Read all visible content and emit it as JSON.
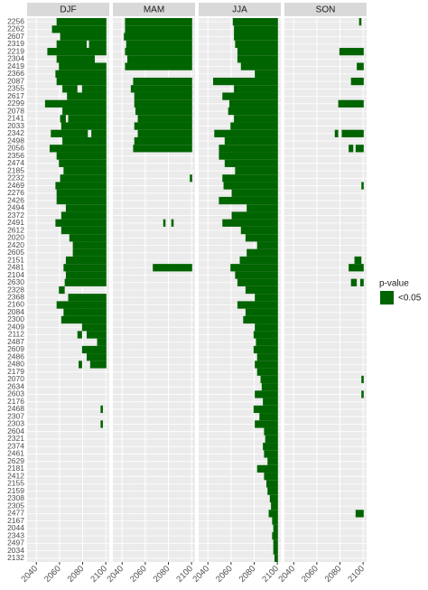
{
  "chart_data": {
    "type": "tile",
    "categories": [
      "2256",
      "2262",
      "2607",
      "2319",
      "2219",
      "2304",
      "2419",
      "2366",
      "2087",
      "2355",
      "2617",
      "2299",
      "2078",
      "2141",
      "2033",
      "2342",
      "2498",
      "2056",
      "2356",
      "2474",
      "2185",
      "2232",
      "2469",
      "2276",
      "2426",
      "2494",
      "2372",
      "2491",
      "2612",
      "2020",
      "2420",
      "2605",
      "2151",
      "2481",
      "2104",
      "2630",
      "2328",
      "2368",
      "2160",
      "2084",
      "2300",
      "2409",
      "2112",
      "2487",
      "2609",
      "2486",
      "2480",
      "2179",
      "2070",
      "2634",
      "2603",
      "2176",
      "2468",
      "2307",
      "2303",
      "2604",
      "2321",
      "2374",
      "2461",
      "2629",
      "2181",
      "2412",
      "2155",
      "2159",
      "2308",
      "2305",
      "2477",
      "2167",
      "2044",
      "2343",
      "2497",
      "2034",
      "2132"
    ],
    "xlim": [
      2032,
      2103
    ],
    "xticks": [
      2040,
      2060,
      2080,
      2100
    ],
    "legend_title": "p-value",
    "legend_label": "<0.05",
    "color": "#006400",
    "grid": true,
    "facets": [
      {
        "name": "DJF",
        "intervals": [
          [
            [
              2058,
              2100
            ]
          ],
          [
            [
              2054,
              2100
            ]
          ],
          [
            [
              2061,
              2100
            ]
          ],
          [
            [
              2058,
              2083
            ],
            [
              2086,
              2100
            ]
          ],
          [
            [
              2050,
              2100
            ]
          ],
          [
            [
              2058,
              2090
            ]
          ],
          [
            [
              2060,
              2100
            ]
          ],
          [
            [
              2057,
              2100
            ]
          ],
          [
            [
              2058,
              2100
            ]
          ],
          [
            [
              2063,
              2075
            ],
            [
              2080,
              2100
            ]
          ],
          [
            [
              2067,
              2100
            ]
          ],
          [
            [
              2048,
              2100
            ]
          ],
          [
            [
              2063,
              2100
            ]
          ],
          [
            [
              2061,
              2065
            ],
            [
              2068,
              2100
            ]
          ],
          [
            [
              2062,
              2100
            ]
          ],
          [
            [
              2053,
              2084
            ],
            [
              2088,
              2100
            ]
          ],
          [
            [
              2063,
              2100
            ]
          ],
          [
            [
              2052,
              2100
            ]
          ],
          [
            [
              2058,
              2100
            ]
          ],
          [
            [
              2060,
              2100
            ]
          ],
          [
            [
              2064,
              2100
            ]
          ],
          [
            [
              2061,
              2100
            ]
          ],
          [
            [
              2057,
              2100
            ]
          ],
          [
            [
              2058,
              2100
            ]
          ],
          [
            [
              2058,
              2100
            ]
          ],
          [
            [
              2066,
              2100
            ]
          ],
          [
            [
              2062,
              2100
            ]
          ],
          [
            [
              2057,
              2100
            ]
          ],
          [
            [
              2062,
              2100
            ]
          ],
          [
            [
              2069,
              2100
            ]
          ],
          [
            [
              2072,
              2100
            ]
          ],
          [
            [
              2072,
              2100
            ]
          ],
          [
            [
              2066,
              2100
            ]
          ],
          [
            [
              2064,
              2100
            ]
          ],
          [
            [
              2066,
              2100
            ]
          ],
          [
            [
              2065,
              2100
            ]
          ],
          [
            [
              2060,
              2064
            ]
          ],
          [
            [
              2068,
              2100
            ]
          ],
          [
            [
              2058,
              2100
            ]
          ],
          [
            [
              2064,
              2100
            ]
          ],
          [
            [
              2062,
              2100
            ]
          ],
          [
            [
              2080,
              2100
            ]
          ],
          [
            [
              2076,
              2079
            ],
            [
              2084,
              2100
            ]
          ],
          [
            [
              2093,
              2100
            ]
          ],
          [
            [
              2080,
              2100
            ]
          ],
          [
            [
              2084,
              2100
            ]
          ],
          [
            [
              2077,
              2079
            ],
            [
              2087,
              2100
            ]
          ],
          [],
          [],
          [],
          [],
          [],
          [
            [
              2096,
              2097
            ]
          ],
          [],
          [
            [
              2096,
              2097
            ]
          ],
          [],
          [],
          [],
          [],
          [],
          [],
          [],
          [],
          [],
          [],
          [],
          [],
          [],
          [],
          [],
          [],
          [],
          []
        ]
      },
      {
        "name": "MAM",
        "intervals": [
          [
            [
              2043,
              2100
            ]
          ],
          [
            [
              2043,
              2100
            ]
          ],
          [
            [
              2042,
              2100
            ]
          ],
          [
            [
              2044,
              2100
            ]
          ],
          [
            [
              2043,
              2100
            ]
          ],
          [
            [
              2045,
              2100
            ]
          ],
          [
            [
              2043,
              2100
            ]
          ],
          [],
          [
            [
              2050,
              2100
            ]
          ],
          [
            [
              2048,
              2100
            ]
          ],
          [
            [
              2051,
              2100
            ]
          ],
          [
            [
              2051,
              2100
            ]
          ],
          [
            [
              2052,
              2100
            ]
          ],
          [
            [
              2054,
              2100
            ]
          ],
          [
            [
              2051,
              2100
            ]
          ],
          [
            [
              2054,
              2100
            ]
          ],
          [
            [
              2051,
              2100
            ]
          ],
          [
            [
              2050,
              2100
            ]
          ],
          [],
          [],
          [],
          [
            [
              2099,
              2100
            ]
          ],
          [],
          [],
          [],
          [],
          [],
          [
            [
              2076,
              2077
            ],
            [
              2083,
              2084
            ]
          ],
          [],
          [],
          [],
          [],
          [],
          [
            [
              2067,
              2100
            ]
          ],
          [],
          [],
          [],
          [],
          [],
          [],
          [],
          [],
          [],
          [],
          [],
          [],
          [],
          [],
          [],
          [],
          [],
          [],
          [],
          [],
          [],
          [],
          [],
          [],
          [],
          [],
          [],
          [],
          [],
          [],
          [],
          [],
          [],
          [],
          [],
          [],
          [],
          [],
          []
        ]
      },
      {
        "name": "JJA",
        "intervals": [
          [
            [
              2062,
              2100
            ]
          ],
          [
            [
              2063,
              2100
            ]
          ],
          [
            [
              2063,
              2100
            ]
          ],
          [
            [
              2064,
              2100
            ]
          ],
          [
            [
              2066,
              2100
            ]
          ],
          [
            [
              2066,
              2100
            ]
          ],
          [
            [
              2069,
              2100
            ]
          ],
          [
            [
              2081,
              2100
            ]
          ],
          [
            [
              2045,
              2100
            ]
          ],
          [
            [
              2063,
              2100
            ]
          ],
          [
            [
              2053,
              2100
            ]
          ],
          [
            [
              2059,
              2100
            ]
          ],
          [
            [
              2058,
              2100
            ]
          ],
          [
            [
              2063,
              2100
            ]
          ],
          [
            [
              2060,
              2100
            ]
          ],
          [
            [
              2046,
              2100
            ]
          ],
          [
            [
              2055,
              2100
            ]
          ],
          [
            [
              2050,
              2100
            ]
          ],
          [
            [
              2050,
              2100
            ]
          ],
          [
            [
              2055,
              2100
            ]
          ],
          [
            [
              2064,
              2100
            ]
          ],
          [
            [
              2053,
              2100
            ]
          ],
          [
            [
              2054,
              2100
            ]
          ],
          [
            [
              2061,
              2100
            ]
          ],
          [
            [
              2050,
              2100
            ]
          ],
          [
            [
              2074,
              2100
            ]
          ],
          [
            [
              2061,
              2100
            ]
          ],
          [
            [
              2053,
              2100
            ]
          ],
          [
            [
              2069,
              2100
            ]
          ],
          [
            [
              2073,
              2100
            ]
          ],
          [
            [
              2083,
              2100
            ]
          ],
          [
            [
              2074,
              2100
            ]
          ],
          [
            [
              2068,
              2100
            ]
          ],
          [
            [
              2060,
              2100
            ]
          ],
          [
            [
              2064,
              2100
            ]
          ],
          [
            [
              2066,
              2100
            ]
          ],
          [
            [
              2073,
              2100
            ]
          ],
          [
            [
              2081,
              2100
            ]
          ],
          [
            [
              2066,
              2100
            ]
          ],
          [
            [
              2073,
              2100
            ]
          ],
          [
            [
              2071,
              2100
            ]
          ],
          [
            [
              2081,
              2100
            ]
          ],
          [
            [
              2080,
              2100
            ]
          ],
          [
            [
              2082,
              2100
            ]
          ],
          [
            [
              2080,
              2100
            ]
          ],
          [
            [
              2083,
              2100
            ]
          ],
          [
            [
              2081,
              2100
            ]
          ],
          [
            [
              2083,
              2100
            ]
          ],
          [
            [
              2086,
              2100
            ]
          ],
          [
            [
              2087,
              2100
            ]
          ],
          [
            [
              2081,
              2100
            ]
          ],
          [
            [
              2088,
              2100
            ]
          ],
          [
            [
              2080,
              2100
            ]
          ],
          [
            [
              2085,
              2100
            ]
          ],
          [
            [
              2081,
              2100
            ]
          ],
          [
            [
              2089,
              2100
            ]
          ],
          [
            [
              2090,
              2100
            ]
          ],
          [
            [
              2088,
              2100
            ]
          ],
          [
            [
              2089,
              2100
            ]
          ],
          [
            [
              2092,
              2100
            ]
          ],
          [
            [
              2083,
              2100
            ]
          ],
          [
            [
              2089,
              2100
            ]
          ],
          [
            [
              2091,
              2100
            ]
          ],
          [
            [
              2092,
              2100
            ]
          ],
          [
            [
              2094,
              2100
            ]
          ],
          [
            [
              2095,
              2100
            ]
          ],
          [
            [
              2093,
              2100
            ]
          ],
          [
            [
              2096,
              2100
            ]
          ],
          [
            [
              2097,
              2100
            ]
          ],
          [
            [
              2096,
              2100
            ]
          ],
          [
            [
              2097,
              2100
            ]
          ],
          [
            [
              2097,
              2100
            ]
          ],
          [
            [
              2098,
              2100
            ]
          ]
        ]
      },
      {
        "name": "SON",
        "intervals": [
          [
            [
              2097,
              2098
            ]
          ],
          [],
          [],
          [],
          [
            [
              2080,
              2100
            ]
          ],
          [],
          [
            [
              2095,
              2100
            ]
          ],
          [],
          [
            [
              2090,
              2100
            ]
          ],
          [],
          [],
          [
            [
              2079,
              2100
            ]
          ],
          [],
          [],
          [],
          [
            [
              2076,
              2078
            ],
            [
              2082,
              2100
            ]
          ],
          [],
          [
            [
              2088,
              2091
            ],
            [
              2094,
              2100
            ]
          ],
          [],
          [],
          [],
          [],
          [
            [
              2099,
              2100
            ]
          ],
          [],
          [],
          [],
          [],
          [],
          [],
          [],
          [],
          [],
          [
            [
              2093,
              2098
            ]
          ],
          [
            [
              2088,
              2100
            ]
          ],
          [],
          [
            [
              2090,
              2094
            ],
            [
              2098,
              2100
            ]
          ],
          [],
          [],
          [],
          [],
          [],
          [],
          [],
          [],
          [],
          [],
          [],
          [],
          [
            [
              2099,
              2100
            ]
          ],
          [],
          [
            [
              2099,
              2100
            ]
          ],
          [],
          [],
          [],
          [],
          [],
          [],
          [],
          [],
          [],
          [],
          [],
          [],
          [],
          [],
          [],
          [
            [
              2094,
              2100
            ]
          ],
          [],
          [],
          [],
          [],
          [],
          []
        ]
      }
    ]
  }
}
